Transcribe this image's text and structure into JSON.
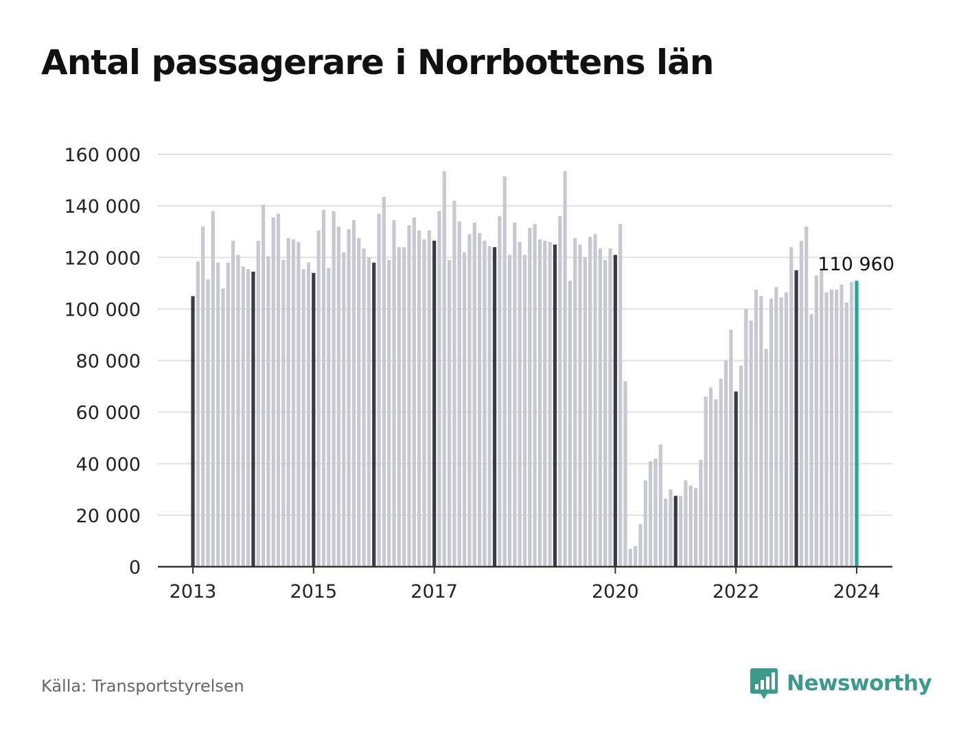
{
  "title": "Antal passagerare i Norrbottens län",
  "source": "Källa: Transportstyrelsen",
  "brand": {
    "name": "Newsworthy",
    "icon": "newsworthy-logo-icon"
  },
  "colors": {
    "bar_default": "#c8c8d2",
    "bar_january": "#3a3a46",
    "bar_latest": "#1ea99a",
    "grid": "#e0e0e6",
    "axis": "#333333",
    "brand": "#3c9a8c"
  },
  "chart_data": {
    "type": "bar",
    "title": "Antal passagerare i Norrbottens län",
    "xlabel": "",
    "ylabel": "",
    "ylim": [
      0,
      160000
    ],
    "y_ticks": [
      0,
      20000,
      40000,
      60000,
      80000,
      100000,
      120000,
      140000,
      160000
    ],
    "y_tick_labels": [
      "0",
      "20 000",
      "40 000",
      "60 000",
      "80 000",
      "100 000",
      "120 000",
      "140 000",
      "160 000"
    ],
    "x_tick_labels": [
      "2013",
      "2015",
      "2017",
      "2020",
      "2022",
      "2024"
    ],
    "grid": true,
    "start": "2013-01",
    "end": "2024-01",
    "frequency": "monthly",
    "values": [
      105000,
      118500,
      132000,
      111500,
      138000,
      118000,
      108000,
      118000,
      126500,
      121000,
      116500,
      115500,
      114500,
      126500,
      140500,
      120500,
      135500,
      137000,
      119000,
      127500,
      127000,
      126000,
      115500,
      118000,
      114000,
      130500,
      138500,
      116000,
      138000,
      132000,
      122000,
      131000,
      134500,
      127500,
      123500,
      120000,
      118000,
      137000,
      143500,
      119000,
      134500,
      124000,
      124000,
      132500,
      135500,
      130500,
      127000,
      130500,
      126500,
      138000,
      153500,
      119000,
      142000,
      134000,
      122000,
      129000,
      133500,
      129500,
      126500,
      124500,
      124000,
      136000,
      151500,
      121000,
      133500,
      126000,
      121000,
      131500,
      133000,
      127000,
      126500,
      126000,
      125000,
      136000,
      153500,
      111000,
      127500,
      125000,
      120000,
      128000,
      129000,
      123500,
      119000,
      123500,
      121000,
      133000,
      72000,
      7000,
      8000,
      16500,
      33500,
      41000,
      42000,
      47500,
      26500,
      30000,
      27500,
      27500,
      33500,
      31500,
      30500,
      41500,
      66000,
      69500,
      65000,
      73000,
      80000,
      92000,
      68000,
      78000,
      100000,
      95500,
      107500,
      105000,
      84500,
      104000,
      108500,
      104500,
      106500,
      124000,
      115000,
      126500,
      132000,
      98000,
      113000,
      115500,
      106500,
      107500,
      107500,
      109500,
      102500,
      110500,
      110960
    ],
    "highlight_month": "January",
    "latest_value": 110960,
    "latest_label": "110 960"
  }
}
